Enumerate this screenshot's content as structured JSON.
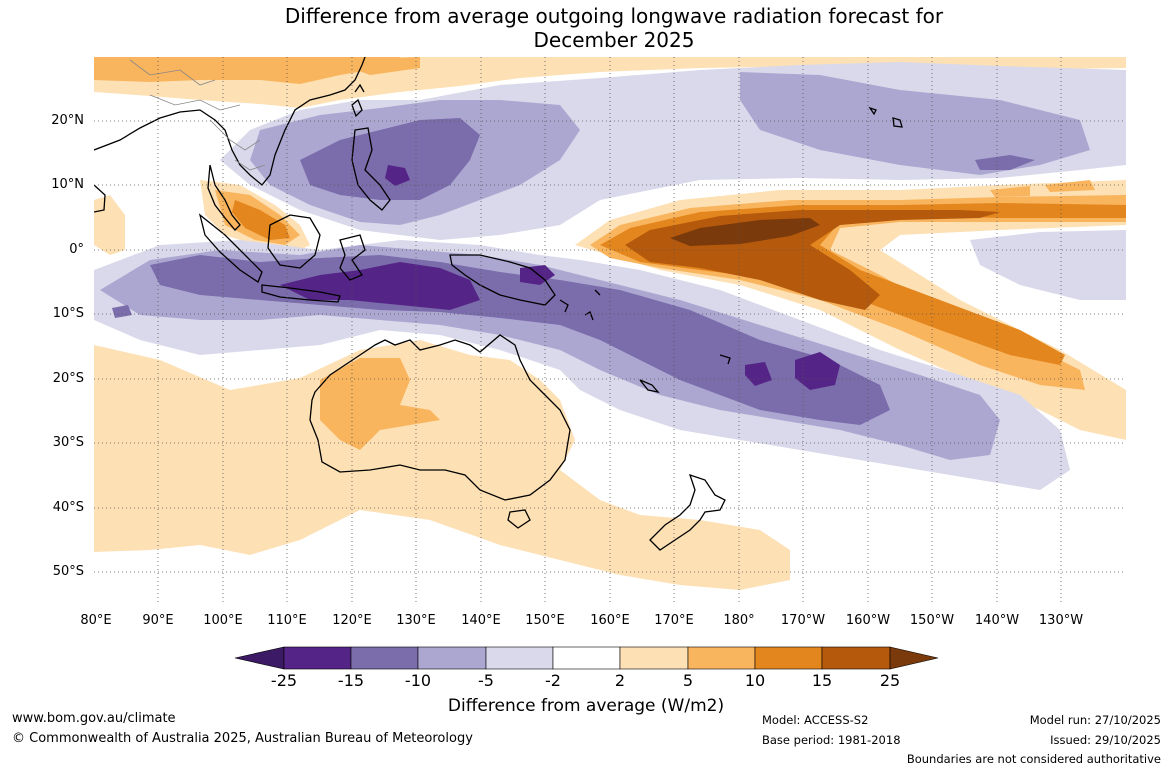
{
  "title": {
    "line1": "Difference from average outgoing longwave radiation forecast for",
    "line2": "December 2025"
  },
  "axes": {
    "lat_labels": [
      "20°N",
      "10°N",
      "0°",
      "10°S",
      "20°S",
      "30°S",
      "40°S",
      "50°S"
    ],
    "lon_labels": [
      "80°E",
      "90°E",
      "100°E",
      "110°E",
      "120°E",
      "130°E",
      "140°E",
      "150°E",
      "160°E",
      "170°E",
      "180°",
      "170°W",
      "160°W",
      "150°W",
      "140°W",
      "130°W"
    ]
  },
  "colorbar": {
    "tick_labels": [
      "-25",
      "-15",
      "-10",
      "-5",
      "-2",
      "2",
      "5",
      "10",
      "15",
      "25"
    ],
    "colors": [
      "#3d1a66",
      "#552487",
      "#7b6cab",
      "#aca7d1",
      "#d9d9eb",
      "#ffffff",
      "#fde0b4",
      "#f9b45e",
      "#e3861d",
      "#b5590d",
      "#7a3a0b"
    ],
    "title": "Difference from average (W/m2)"
  },
  "footer": {
    "url": "www.bom.gov.au/climate",
    "copyright": "© Commonwealth of Australia 2025, Australian Bureau of Meteorology",
    "model": "Model: ACCESS-S2",
    "base_period": "Base period: 1981-2018",
    "model_run": "Model run: 27/10/2025",
    "issued": "Issued: 29/10/2025",
    "disclaimer": "Boundaries are not considered authoritative"
  }
}
